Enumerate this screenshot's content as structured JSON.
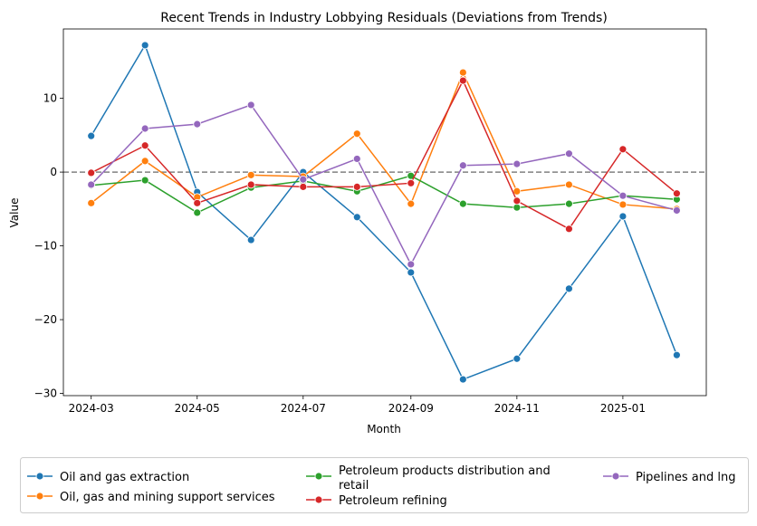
{
  "chart_data": {
    "type": "line",
    "title": "Recent Trends in Industry Lobbying Residuals (Deviations from Trends)",
    "xlabel": "Month",
    "ylabel": "Value",
    "x": [
      "2024-03",
      "2024-04",
      "2024-05",
      "2024-06",
      "2024-07",
      "2024-08",
      "2024-09",
      "2024-10",
      "2024-11",
      "2024-12",
      "2025-01",
      "2025-02"
    ],
    "xticks": [
      "2024-03",
      "2024-05",
      "2024-07",
      "2024-09",
      "2024-11",
      "2025-01"
    ],
    "yticks": [
      10,
      0,
      -10,
      -20,
      -30
    ],
    "xlim": [
      "2024-02-14",
      "2025-02-18"
    ],
    "ylim": [
      -30.3,
      19.4
    ],
    "reference_line": {
      "y": 0,
      "style": "dashed",
      "color": "#808080"
    },
    "grid": false,
    "legend_placement": "bottom",
    "series": [
      {
        "name": "Oil and gas extraction",
        "color": "#1f77b4",
        "values": [
          4.9,
          17.2,
          -2.7,
          -9.2,
          0.0,
          -6.1,
          -13.6,
          -28.1,
          -25.3,
          -15.8,
          -6.0,
          -24.8
        ]
      },
      {
        "name": "Oil, gas and mining support services",
        "color": "#ff7f0e",
        "values": [
          -4.2,
          1.5,
          -3.4,
          -0.4,
          -0.6,
          5.2,
          -4.3,
          13.5,
          -2.6,
          -1.7,
          -4.4,
          -5.0
        ]
      },
      {
        "name": "Petroleum products distribution and retail",
        "color": "#2ca02c",
        "values": [
          -1.8,
          -1.1,
          -5.5,
          -2.1,
          -1.2,
          -2.6,
          -0.5,
          -4.3,
          -4.8,
          -4.3,
          -3.2,
          -3.7
        ]
      },
      {
        "name": "Petroleum refining",
        "color": "#d62728",
        "values": [
          -0.1,
          3.6,
          -4.2,
          -1.7,
          -2.0,
          -2.0,
          -1.5,
          12.4,
          -3.9,
          -7.7,
          3.1,
          -2.9
        ]
      },
      {
        "name": "Pipelines and lng",
        "color": "#9467bd",
        "values": [
          -1.7,
          5.9,
          6.5,
          9.1,
          -1.0,
          1.8,
          -12.5,
          0.9,
          1.1,
          2.5,
          -3.2,
          -5.2
        ]
      }
    ]
  }
}
